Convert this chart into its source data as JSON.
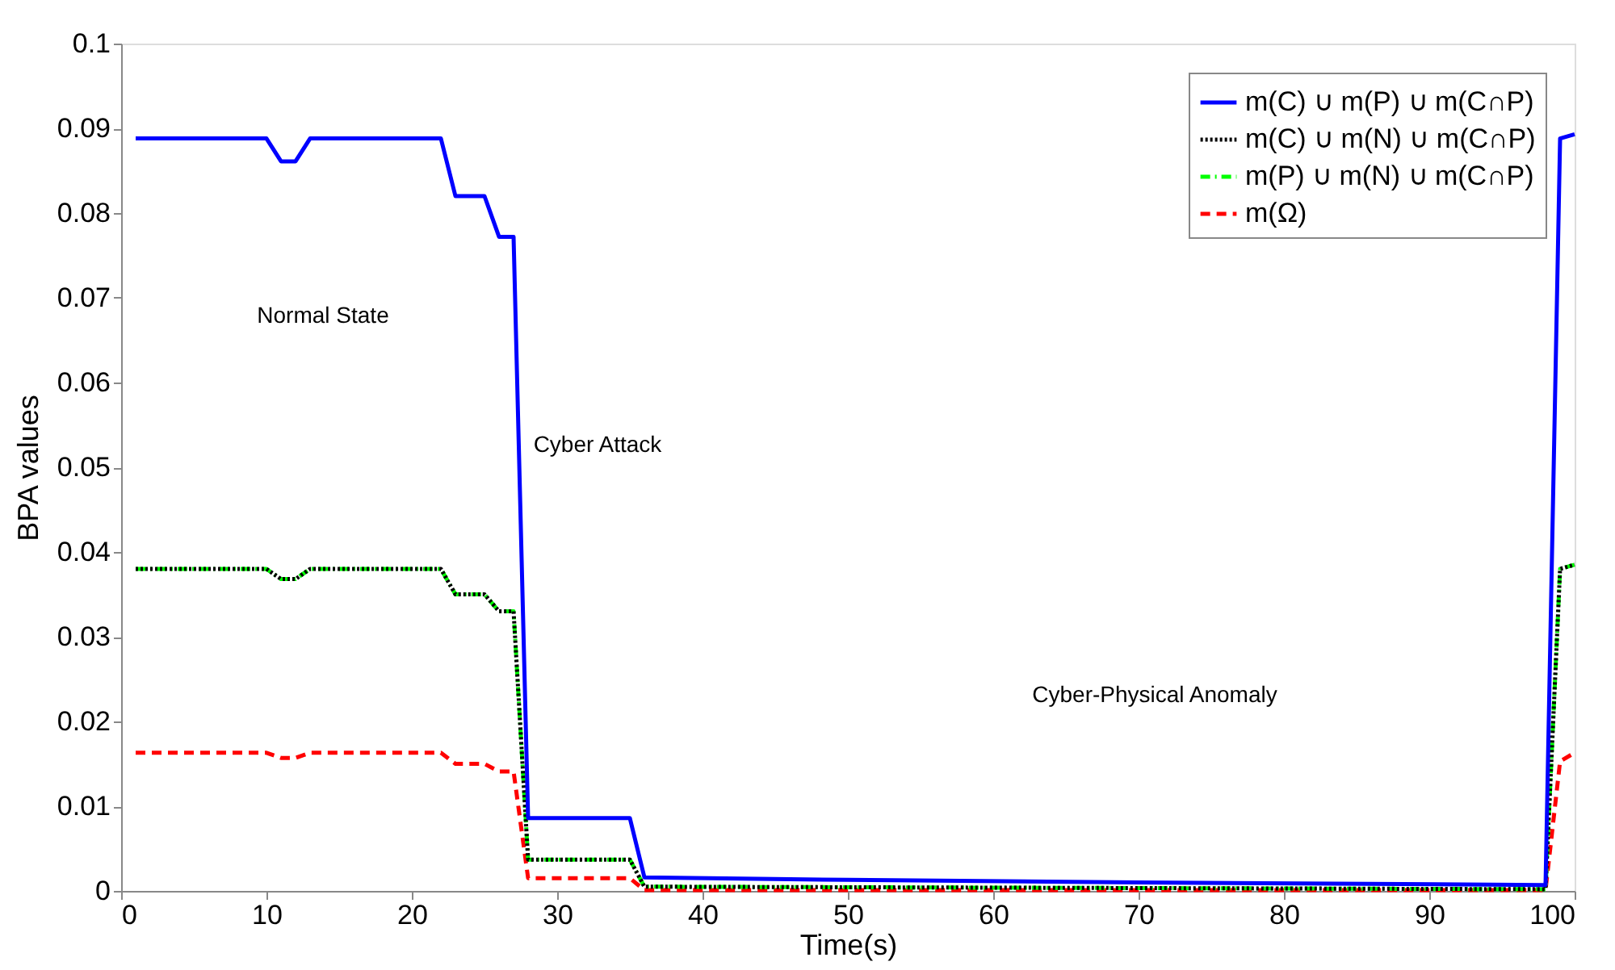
{
  "chart_data": {
    "type": "line",
    "xlabel": "Time(s)",
    "ylabel": "BPA values",
    "xlim": [
      0,
      100
    ],
    "ylim": [
      0,
      0.1
    ],
    "xticks": [
      0,
      10,
      20,
      30,
      40,
      50,
      60,
      70,
      80,
      90,
      100
    ],
    "yticks": [
      0,
      0.01,
      0.02,
      0.03,
      0.04,
      0.05,
      0.06,
      0.07,
      0.08,
      0.09,
      0.1
    ],
    "grid": false,
    "legend": "top right",
    "marker": "none",
    "annotations": [
      "Normal State",
      "Cyber Attack",
      "Cyber-Physical Anomaly"
    ],
    "series": [
      {
        "name": "m(C) ∪ m(P) ∪ m(C∩P)",
        "color": "#0000ff",
        "line_style": "solid",
        "x": [
          1,
          10,
          11,
          12,
          13,
          22,
          23,
          25,
          26,
          27,
          28,
          35,
          36,
          50,
          70,
          98,
          99,
          100
        ],
        "values": [
          0.0888,
          0.0888,
          0.0861,
          0.0861,
          0.0888,
          0.0888,
          0.082,
          0.082,
          0.0772,
          0.0772,
          0.0086,
          0.0086,
          0.0016,
          0.0013,
          0.001,
          0.0007,
          0.0888,
          0.0893
        ]
      },
      {
        "name": "m(C) ∪ m(N) ∪ m(C∩P)",
        "color": "#000000",
        "line_style": "dotted",
        "x": [
          1,
          10,
          11,
          12,
          13,
          22,
          23,
          25,
          26,
          27,
          28,
          35,
          36,
          98,
          99,
          100
        ],
        "values": [
          0.038,
          0.038,
          0.0368,
          0.0368,
          0.038,
          0.038,
          0.035,
          0.035,
          0.033,
          0.033,
          0.0037,
          0.0037,
          0.0005,
          0.0002,
          0.038,
          0.0385
        ]
      },
      {
        "name": "m(P) ∪ m(N) ∪ m(C∩P)",
        "color": "#00ff00",
        "line_style": "dashdot",
        "x": [
          1,
          10,
          11,
          12,
          13,
          22,
          23,
          25,
          26,
          27,
          28,
          35,
          36,
          98,
          99,
          100
        ],
        "values": [
          0.038,
          0.038,
          0.0368,
          0.0368,
          0.038,
          0.038,
          0.035,
          0.035,
          0.033,
          0.033,
          0.0037,
          0.0037,
          0.0005,
          0.0002,
          0.038,
          0.0385
        ]
      },
      {
        "name": "m(Ω)",
        "color": "#ff0000",
        "line_style": "dashed",
        "x": [
          1,
          10,
          11,
          12,
          13,
          22,
          23,
          25,
          26,
          27,
          28,
          35,
          36,
          98,
          99,
          100
        ],
        "values": [
          0.0163,
          0.0163,
          0.0157,
          0.0157,
          0.0163,
          0.0163,
          0.015,
          0.015,
          0.0141,
          0.0141,
          0.0015,
          0.0015,
          0.0001,
          0.0001,
          0.0153,
          0.0163
        ]
      }
    ]
  }
}
